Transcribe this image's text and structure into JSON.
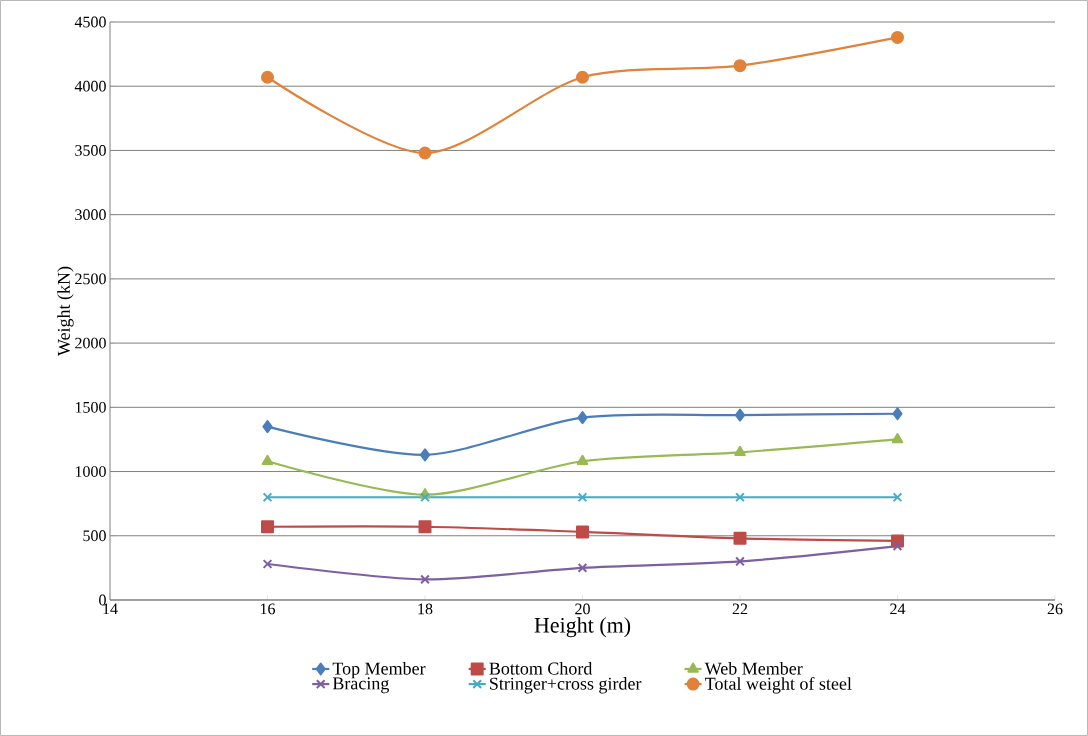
{
  "chart_data": {
    "type": "line",
    "xlabel": "Height (m)",
    "ylabel": "Weight (kN)",
    "x": [
      16,
      18,
      20,
      22,
      24
    ],
    "xlim": [
      14,
      26
    ],
    "xticks": [
      14,
      16,
      18,
      20,
      22,
      24,
      26
    ],
    "ylim": [
      0,
      4500
    ],
    "yticks": [
      0,
      500,
      1000,
      1500,
      2000,
      2500,
      3000,
      3500,
      4000,
      4500
    ],
    "grid": "y",
    "legend": "bottom",
    "series": [
      {
        "name": "Top Member",
        "color": "#4a7ebb",
        "marker": "diamond",
        "values": [
          1350,
          1130,
          1420,
          1440,
          1450
        ]
      },
      {
        "name": "Bottom Chord",
        "color": "#be4b48",
        "marker": "square",
        "values": [
          570,
          570,
          530,
          480,
          460
        ]
      },
      {
        "name": "Web Member",
        "color": "#98b954",
        "marker": "triangle",
        "values": [
          1080,
          820,
          1080,
          1150,
          1250
        ]
      },
      {
        "name": "Bracing",
        "color": "#7d60a0",
        "marker": "cross",
        "values": [
          280,
          160,
          250,
          300,
          420
        ]
      },
      {
        "name": "Stringer+cross girder",
        "color": "#46aac5",
        "marker": "cross",
        "values": [
          800,
          800,
          800,
          800,
          800
        ]
      },
      {
        "name": "Total weight of steel",
        "color": "#e0823a",
        "marker": "circle",
        "values": [
          4070,
          3480,
          4070,
          4160,
          4380
        ]
      }
    ]
  }
}
